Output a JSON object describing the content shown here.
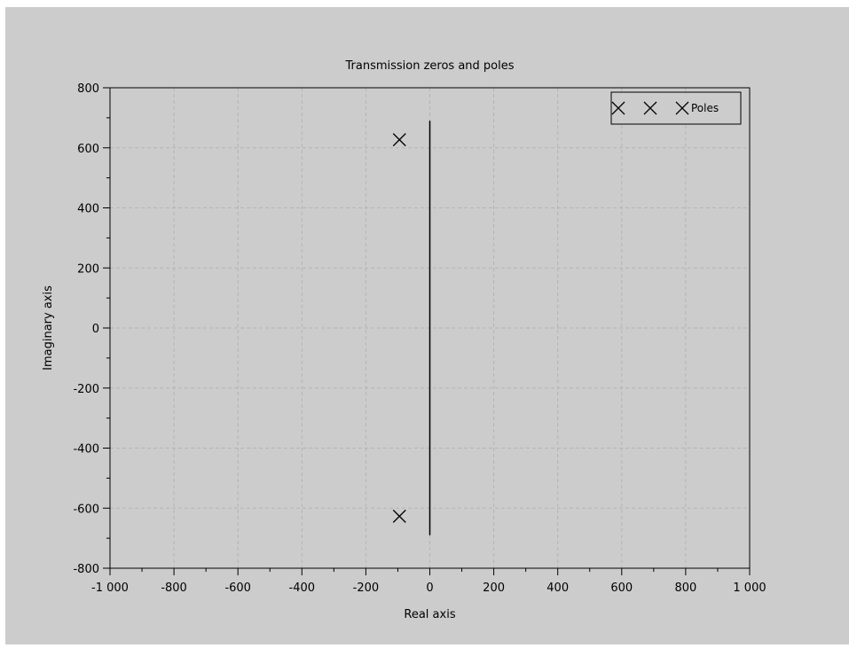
{
  "chart_data": {
    "type": "scatter",
    "title": "Transmission zeros and poles",
    "xlabel": "Real axis",
    "ylabel": "Imaginary axis",
    "xlim": [
      -1000,
      1000
    ],
    "ylim": [
      -800,
      800
    ],
    "x_ticks": [
      -1000,
      -800,
      -600,
      -400,
      -200,
      0,
      200,
      400,
      600,
      800,
      1000
    ],
    "x_tick_labels": [
      "-1 000",
      "-800",
      "-600",
      "-400",
      "-200",
      "0",
      "200",
      "400",
      "600",
      "800",
      "1 000"
    ],
    "y_ticks": [
      -800,
      -600,
      -400,
      -200,
      0,
      200,
      400,
      600,
      800
    ],
    "y_tick_labels": [
      "-800",
      "-600",
      "-400",
      "-200",
      "0",
      "200",
      "400",
      "600",
      "800"
    ],
    "grid": true,
    "legend_position": "top-right",
    "series": [
      {
        "name": "Poles",
        "marker": "x",
        "color": "#000000",
        "points": [
          {
            "x": -95,
            "y": 627
          },
          {
            "x": -95,
            "y": -627
          }
        ]
      }
    ],
    "reference_line": {
      "x": 0,
      "y_range": [
        -690,
        690
      ],
      "color": "#000000"
    },
    "grid_color": "#b4b4b4",
    "background_color": "#cccccc"
  }
}
